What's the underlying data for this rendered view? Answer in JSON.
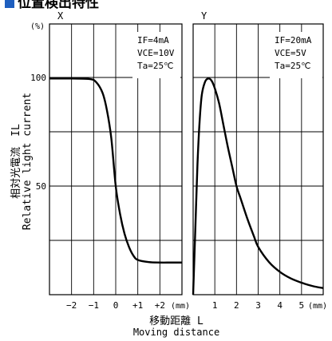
{
  "page": {
    "title": "位置検出特性",
    "title_marker_color": "#1f5fbf"
  },
  "chart_data": [
    {
      "type": "line",
      "panel_label": "X",
      "ylabel": "相対光電流　IL Relative light current",
      "ylabel_jp": "相対光電流　IL",
      "ylabel_en": "Relative light current",
      "yunit": "(%)",
      "xlabel_jp": "移動距離 L",
      "xlabel_en": "Moving distance",
      "xunit": "(mm)",
      "xlim": [
        -3,
        3
      ],
      "ylim": [
        0,
        110
      ],
      "x_ticks": [
        -2,
        -1,
        0,
        1,
        2
      ],
      "x_tick_labels": [
        "−2",
        "−1",
        "0",
        "+1",
        "+2"
      ],
      "y_ticks": [
        50,
        100
      ],
      "y_tick_labels": [
        "50",
        "100"
      ],
      "grid": true,
      "conditions": [
        "IF=4mA",
        "VCE=10V",
        "Ta=25℃"
      ],
      "series": [
        {
          "x": [
            -3.0,
            -2.0,
            -1.2,
            -0.9,
            -0.6,
            -0.4,
            -0.2,
            0.0,
            0.2,
            0.4,
            0.6,
            0.8,
            1.0,
            1.5,
            2.0,
            2.5,
            3.0
          ],
          "y": [
            99.5,
            99.5,
            99.3,
            98.0,
            93.0,
            85.0,
            72.0,
            50.0,
            37.0,
            28.0,
            22.0,
            18.0,
            16.0,
            15.0,
            14.8,
            14.8,
            14.8
          ]
        }
      ]
    },
    {
      "type": "line",
      "panel_label": "Y",
      "xunit": "(mm)",
      "xlim": [
        0,
        6
      ],
      "ylim": [
        0,
        110
      ],
      "x_ticks": [
        1,
        2,
        3,
        4,
        5
      ],
      "x_tick_labels": [
        "1",
        "2",
        "3",
        "4",
        "5"
      ],
      "grid": true,
      "conditions": [
        "IF=20mA",
        "VCE=5V",
        "Ta=25℃"
      ],
      "series": [
        {
          "x": [
            0.0,
            0.1,
            0.2,
            0.3,
            0.4,
            0.55,
            0.7,
            0.85,
            1.0,
            1.2,
            1.4,
            1.6,
            1.8,
            2.0,
            2.2,
            2.5,
            2.8,
            3.0,
            3.5,
            4.0,
            4.5,
            5.0,
            5.5,
            6.0
          ],
          "y": [
            0.0,
            30.0,
            60.0,
            80.0,
            92.0,
            98.0,
            99.5,
            98.5,
            95.0,
            88.0,
            78.0,
            68.0,
            59.0,
            50.0,
            44.0,
            35.0,
            27.0,
            22.0,
            15.0,
            10.5,
            7.5,
            5.5,
            4.0,
            3.0
          ]
        }
      ]
    }
  ]
}
